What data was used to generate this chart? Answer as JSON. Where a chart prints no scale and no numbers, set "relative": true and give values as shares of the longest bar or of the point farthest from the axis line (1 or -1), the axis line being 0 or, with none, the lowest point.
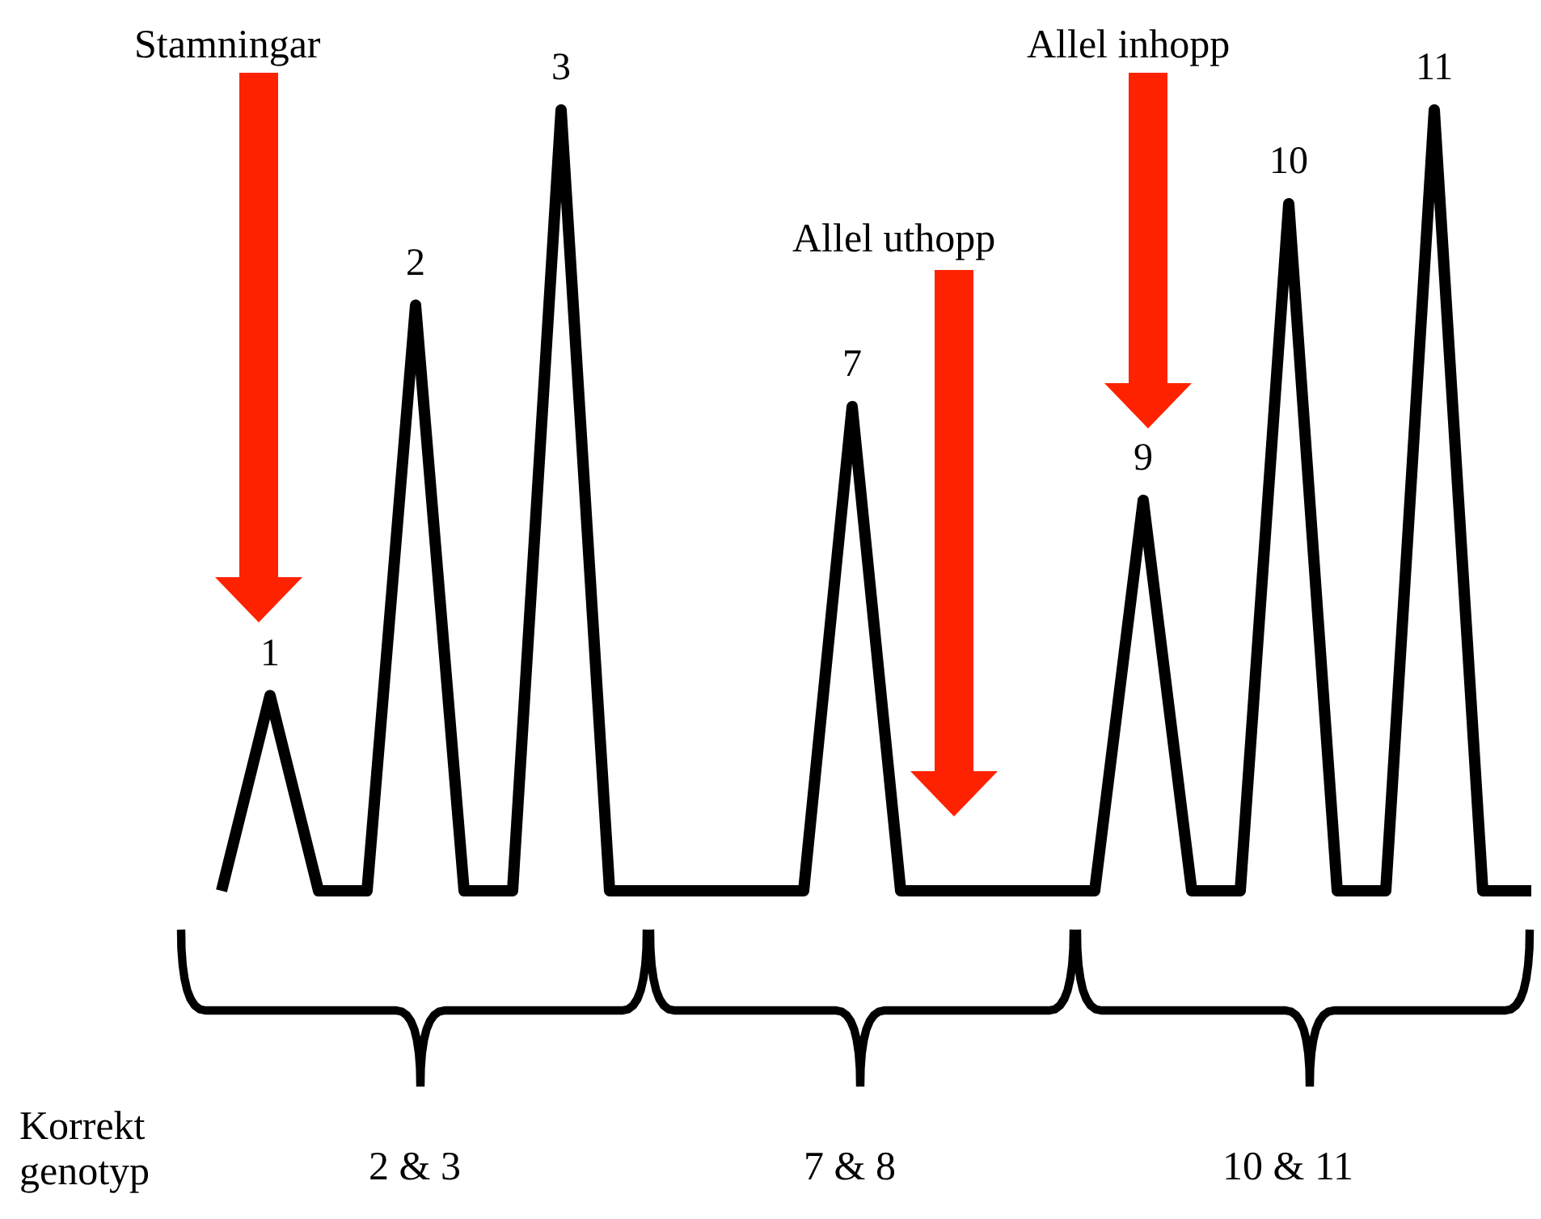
{
  "chart_data": {
    "type": "line",
    "relative": true,
    "color": "#000000",
    "categories": [
      null,
      null,
      null,
      null,
      null,
      null,
      null,
      null,
      null,
      null,
      null,
      null,
      null,
      null,
      null,
      null,
      null,
      null,
      null,
      null,
      null,
      null,
      null,
      null,
      null,
      null,
      null,
      null
    ],
    "values": [
      0,
      0.25,
      0,
      0,
      0.75,
      0,
      0,
      1.0,
      0,
      0,
      0,
      0,
      0,
      0.62,
      0,
      0,
      0,
      0,
      0,
      0.5,
      0,
      0,
      0.88,
      0,
      0,
      1.0,
      0,
      0
    ],
    "annotations": [
      "Stamningar",
      "Allel uthopp",
      "Allel inhopp",
      "Korrekt genotyp",
      "2 & 3",
      "7 & 8",
      "10 & 11",
      {
        "text": "1",
        "y": 0.25
      },
      {
        "text": "2",
        "y": 0.75
      },
      {
        "text": "3",
        "y": 1.0
      },
      {
        "text": "7",
        "y": 0.62
      },
      {
        "text": "9",
        "y": 0.5
      },
      {
        "text": "10",
        "y": 0.88
      },
      {
        "text": "11",
        "y": 1.0
      }
    ]
  }
}
